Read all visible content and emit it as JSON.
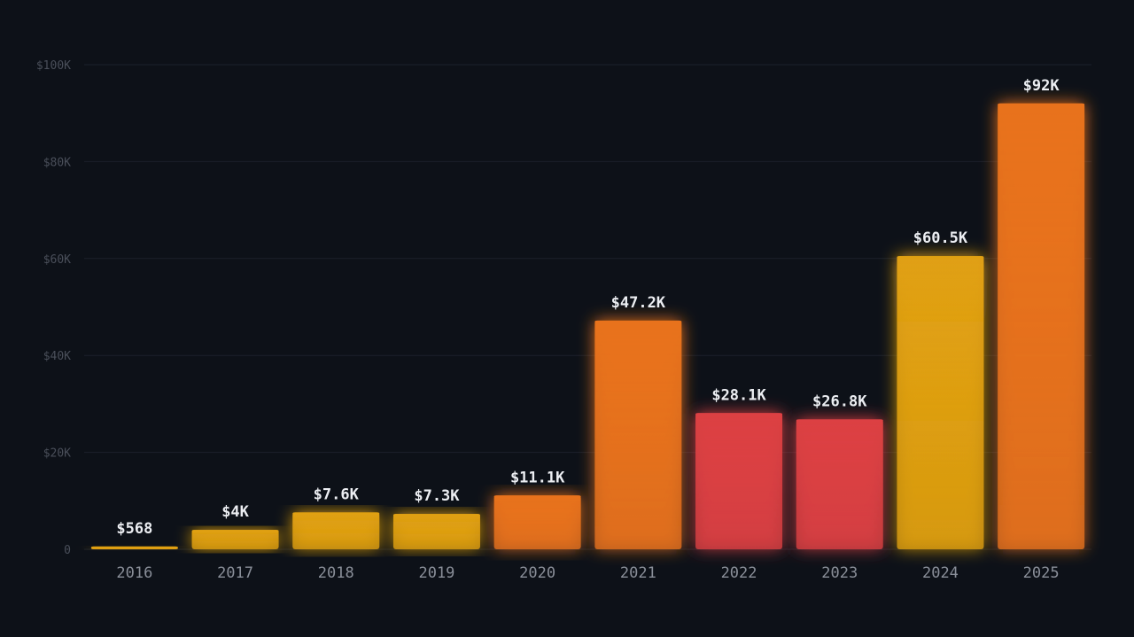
{
  "chart_data": {
    "type": "bar",
    "categories": [
      "2016",
      "2017",
      "2018",
      "2019",
      "2020",
      "2021",
      "2022",
      "2023",
      "2024",
      "2025"
    ],
    "values": [
      568,
      4000,
      7600,
      7300,
      11100,
      47200,
      28100,
      26800,
      60500,
      92000
    ],
    "data_labels": [
      "$568",
      "$4K",
      "$7.6K",
      "$7.3K",
      "$11.1K",
      "$47.2K",
      "$28.1K",
      "$26.8K",
      "$60.5K",
      "$92K"
    ],
    "bar_colors": [
      "#e0a012",
      "#e0a012",
      "#e0a012",
      "#e0a012",
      "#e8721c",
      "#e8721c",
      "#dc4043",
      "#dc4043",
      "#e0a012",
      "#e8721c"
    ],
    "yticks": [
      0,
      20000,
      40000,
      60000,
      80000,
      100000
    ],
    "ytick_labels": [
      "0",
      "$20K",
      "$40K",
      "$60K",
      "$80K",
      "$100K"
    ],
    "ylim": [
      0,
      100000
    ],
    "grid": true,
    "title": "",
    "xlabel": "",
    "ylabel": ""
  },
  "colors": {
    "background": "#0d1118",
    "grid": "#1c212b",
    "tick_text": "#4a4f5a",
    "x_label_text": "#8a8f99",
    "data_label_text": "#eceef2"
  }
}
